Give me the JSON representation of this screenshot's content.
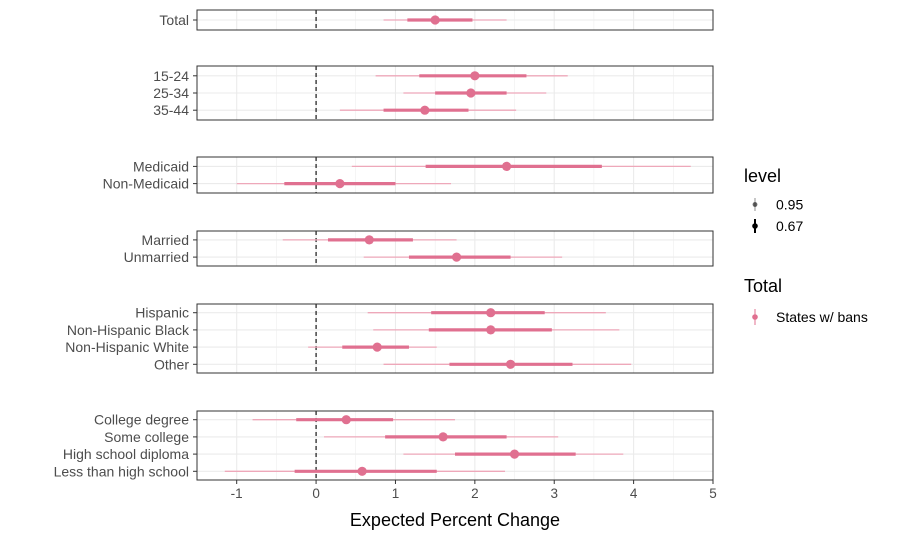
{
  "chart_data": {
    "type": "point-range",
    "xlabel": "Expected Percent Change",
    "xlim": [
      -1.5,
      5.0
    ],
    "x_ticks": [
      -1,
      0,
      1,
      2,
      3,
      4,
      5
    ],
    "x_tick_labels": [
      "-1",
      "0",
      "1",
      "2",
      "3",
      "4",
      "5"
    ],
    "reference_line": 0,
    "grid": true,
    "legend_position": "right",
    "colors": {
      "series": "#e07090",
      "series_light": "#eea8ba",
      "grid": "#ebebeb",
      "panel_border": "#333333"
    },
    "legend": {
      "level_title": "level",
      "levels": [
        "0.95",
        "0.67"
      ],
      "group_title": "Total",
      "groups": [
        "States w/ bans"
      ]
    },
    "panels": [
      {
        "rows": [
          {
            "label": "Total",
            "estimate": 1.5,
            "ci67": [
              1.15,
              1.97
            ],
            "ci95": [
              0.85,
              2.4
            ]
          }
        ]
      },
      {
        "rows": [
          {
            "label": "15-24",
            "estimate": 2.0,
            "ci67": [
              1.3,
              2.65
            ],
            "ci95": [
              0.75,
              3.17
            ]
          },
          {
            "label": "25-34",
            "estimate": 1.95,
            "ci67": [
              1.5,
              2.4
            ],
            "ci95": [
              1.1,
              2.9
            ]
          },
          {
            "label": "35-44",
            "estimate": 1.37,
            "ci67": [
              0.85,
              1.92
            ],
            "ci95": [
              0.3,
              2.52
            ]
          }
        ]
      },
      {
        "rows": [
          {
            "label": "Medicaid",
            "estimate": 2.4,
            "ci67": [
              1.38,
              3.6
            ],
            "ci95": [
              0.45,
              4.72
            ]
          },
          {
            "label": "Non-Medicaid",
            "estimate": 0.3,
            "ci67": [
              -0.4,
              1.0
            ],
            "ci95": [
              -1.0,
              1.7
            ]
          }
        ]
      },
      {
        "rows": [
          {
            "label": "Married",
            "estimate": 0.67,
            "ci67": [
              0.15,
              1.22
            ],
            "ci95": [
              -0.42,
              1.77
            ]
          },
          {
            "label": "Unmarried",
            "estimate": 1.77,
            "ci67": [
              1.17,
              2.45
            ],
            "ci95": [
              0.6,
              3.1
            ]
          }
        ]
      },
      {
        "rows": [
          {
            "label": "Hispanic",
            "estimate": 2.2,
            "ci67": [
              1.45,
              2.88
            ],
            "ci95": [
              0.65,
              3.65
            ]
          },
          {
            "label": "Non-Hispanic Black",
            "estimate": 2.2,
            "ci67": [
              1.42,
              2.97
            ],
            "ci95": [
              0.72,
              3.82
            ]
          },
          {
            "label": "Non-Hispanic White",
            "estimate": 0.77,
            "ci67": [
              0.33,
              1.17
            ],
            "ci95": [
              -0.1,
              1.52
            ]
          },
          {
            "label": "Other",
            "estimate": 2.45,
            "ci67": [
              1.68,
              3.23
            ],
            "ci95": [
              0.85,
              3.97
            ]
          }
        ]
      },
      {
        "rows": [
          {
            "label": "College degree",
            "estimate": 0.38,
            "ci67": [
              -0.25,
              0.97
            ],
            "ci95": [
              -0.8,
              1.75
            ]
          },
          {
            "label": "Some college",
            "estimate": 1.6,
            "ci67": [
              0.87,
              2.4
            ],
            "ci95": [
              0.1,
              3.05
            ]
          },
          {
            "label": "High school diploma",
            "estimate": 2.5,
            "ci67": [
              1.75,
              3.27
            ],
            "ci95": [
              1.1,
              3.87
            ]
          },
          {
            "label": "Less than high school",
            "estimate": 0.58,
            "ci67": [
              -0.27,
              1.52
            ],
            "ci95": [
              -1.15,
              2.38
            ]
          }
        ]
      }
    ]
  }
}
